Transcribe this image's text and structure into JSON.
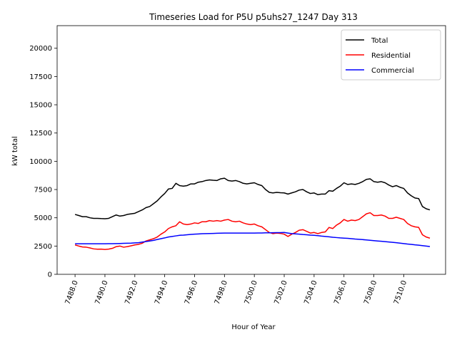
{
  "chart_data": {
    "type": "line",
    "title": "Timeseries Load for P5U p5uhs27_1247  Day 313",
    "xlabel": "Hour of Year",
    "ylabel": "kW total",
    "xlim": [
      7486.8,
      7512.8
    ],
    "ylim": [
      0,
      22000
    ],
    "xticks": [
      7488,
      7490,
      7492,
      7494,
      7496,
      7498,
      7500,
      7502,
      7504,
      7506,
      7508,
      7510
    ],
    "xtick_labels": [
      "7488.0",
      "7490.0",
      "7492.0",
      "7494.0",
      "7496.0",
      "7498.0",
      "7500.0",
      "7502.0",
      "7504.0",
      "7506.0",
      "7508.0",
      "7510.0"
    ],
    "yticks": [
      0,
      2500,
      5000,
      7500,
      10000,
      12500,
      15000,
      17500,
      20000
    ],
    "ytick_labels": [
      "0",
      "2500",
      "5000",
      "7500",
      "10000",
      "12500",
      "15000",
      "17500",
      "20000"
    ],
    "legend_position": "top-right",
    "grid": false,
    "x": [
      7488.0,
      7488.25,
      7488.5,
      7488.75,
      7489.0,
      7489.25,
      7489.5,
      7489.75,
      7490.0,
      7490.25,
      7490.5,
      7490.75,
      7491.0,
      7491.25,
      7491.5,
      7491.75,
      7492.0,
      7492.25,
      7492.5,
      7492.75,
      7493.0,
      7493.25,
      7493.5,
      7493.75,
      7494.0,
      7494.25,
      7494.5,
      7494.75,
      7495.0,
      7495.25,
      7495.5,
      7495.75,
      7496.0,
      7496.25,
      7496.5,
      7496.75,
      7497.0,
      7497.25,
      7497.5,
      7497.75,
      7498.0,
      7498.25,
      7498.5,
      7498.75,
      7499.0,
      7499.25,
      7499.5,
      7499.75,
      7500.0,
      7500.25,
      7500.5,
      7500.75,
      7501.0,
      7501.25,
      7501.5,
      7501.75,
      7502.0,
      7502.25,
      7502.5,
      7502.75,
      7503.0,
      7503.25,
      7503.5,
      7503.75,
      7504.0,
      7504.25,
      7504.5,
      7504.75,
      7505.0,
      7505.25,
      7505.5,
      7505.75,
      7506.0,
      7506.25,
      7506.5,
      7506.75,
      7507.0,
      7507.25,
      7507.5,
      7507.75,
      7508.0,
      7508.25,
      7508.5,
      7508.75,
      7509.0,
      7509.25,
      7509.5,
      7509.75,
      7510.0,
      7510.25,
      7510.5,
      7510.75,
      7511.0,
      7511.25,
      7511.5,
      7511.75
    ],
    "series": [
      {
        "name": "Total",
        "color": "#000000",
        "values": [
          5300,
          5200,
          5100,
          5100,
          5000,
          4950,
          4950,
          4930,
          4920,
          4950,
          5100,
          5250,
          5150,
          5200,
          5300,
          5350,
          5400,
          5550,
          5700,
          5900,
          6000,
          6250,
          6500,
          6850,
          7150,
          7550,
          7600,
          8050,
          7850,
          7800,
          7850,
          8000,
          8000,
          8150,
          8200,
          8300,
          8350,
          8320,
          8300,
          8450,
          8500,
          8300,
          8250,
          8300,
          8200,
          8050,
          8000,
          8050,
          8100,
          7950,
          7850,
          7500,
          7250,
          7200,
          7250,
          7220,
          7200,
          7100,
          7200,
          7300,
          7450,
          7500,
          7300,
          7150,
          7200,
          7050,
          7100,
          7100,
          7400,
          7350,
          7600,
          7800,
          8100,
          7950,
          8000,
          7950,
          8050,
          8200,
          8400,
          8450,
          8200,
          8150,
          8200,
          8100,
          7900,
          7750,
          7850,
          7700,
          7600,
          7200,
          6950,
          6750,
          6700,
          6000,
          5800,
          5700
        ]
      },
      {
        "name": "Residential",
        "color": "#ff0000",
        "values": [
          2600,
          2500,
          2420,
          2400,
          2330,
          2250,
          2220,
          2230,
          2200,
          2230,
          2300,
          2450,
          2500,
          2400,
          2450,
          2520,
          2600,
          2650,
          2750,
          2950,
          3050,
          3150,
          3300,
          3550,
          3750,
          4050,
          4200,
          4300,
          4650,
          4450,
          4400,
          4450,
          4550,
          4500,
          4650,
          4650,
          4750,
          4700,
          4750,
          4700,
          4800,
          4850,
          4700,
          4650,
          4700,
          4550,
          4450,
          4400,
          4450,
          4300,
          4200,
          3950,
          3700,
          3600,
          3650,
          3620,
          3550,
          3350,
          3550,
          3700,
          3900,
          3950,
          3800,
          3650,
          3700,
          3600,
          3700,
          3750,
          4150,
          4050,
          4350,
          4550,
          4850,
          4700,
          4800,
          4750,
          4850,
          5100,
          5350,
          5450,
          5200,
          5200,
          5250,
          5150,
          4950,
          4950,
          5050,
          4950,
          4850,
          4500,
          4300,
          4200,
          4150,
          3500,
          3300,
          3200
        ]
      },
      {
        "name": "Commercial",
        "color": "#0000ff",
        "values": [
          2700,
          2700,
          2700,
          2700,
          2700,
          2700,
          2700,
          2700,
          2700,
          2710,
          2710,
          2720,
          2730,
          2740,
          2750,
          2760,
          2780,
          2800,
          2850,
          2900,
          2950,
          3000,
          3080,
          3150,
          3220,
          3300,
          3350,
          3400,
          3450,
          3470,
          3500,
          3530,
          3550,
          3570,
          3590,
          3600,
          3610,
          3620,
          3630,
          3640,
          3650,
          3650,
          3650,
          3650,
          3650,
          3650,
          3650,
          3650,
          3650,
          3660,
          3660,
          3670,
          3670,
          3680,
          3690,
          3690,
          3700,
          3650,
          3600,
          3580,
          3550,
          3520,
          3500,
          3470,
          3450,
          3420,
          3380,
          3350,
          3320,
          3280,
          3250,
          3220,
          3200,
          3180,
          3150,
          3120,
          3100,
          3070,
          3040,
          3010,
          2980,
          2950,
          2920,
          2890,
          2860,
          2830,
          2800,
          2760,
          2720,
          2680,
          2650,
          2610,
          2580,
          2540,
          2500,
          2460
        ]
      }
    ]
  }
}
